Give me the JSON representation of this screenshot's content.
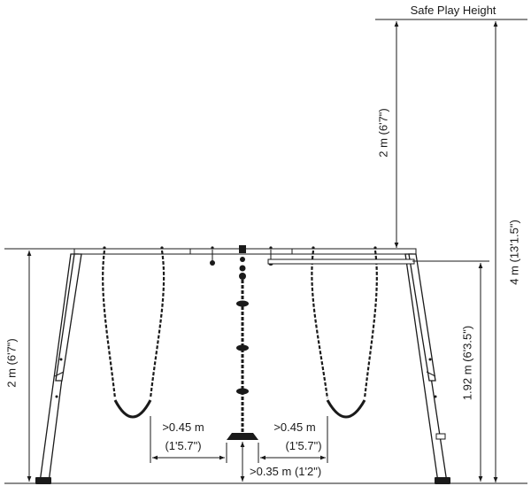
{
  "labels": {
    "safe_play_height": "Safe Play Height",
    "frame_height": "2 m (6'7\")",
    "safe_zone_above": "2 m (6'7\")",
    "total_height": "4 m (13'1.5\")",
    "beam_height": "1.92 m (6'3.5\")",
    "gap_left_m": ">0.45 m",
    "gap_left_ft": "(1'5.7\")",
    "gap_right_m": ">0.45 m",
    "gap_right_ft": "(1'5.7\")",
    "ground_clearance": ">0.35 m (1'2\")"
  },
  "icons": {
    "left_swing": "swing-seat",
    "right_swing": "swing-seat",
    "climbing_rope": "disc-rope-swing"
  }
}
